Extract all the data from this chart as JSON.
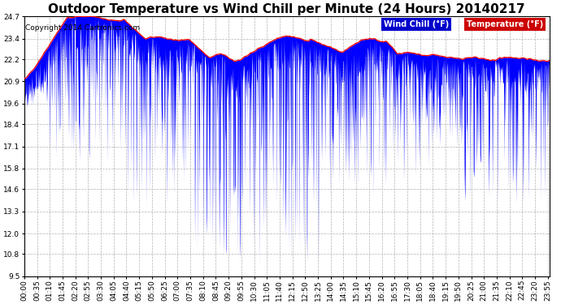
{
  "title": "Outdoor Temperature vs Wind Chill per Minute (24 Hours) 20140217",
  "copyright": "Copyright 2014 Cartronics.com",
  "legend_wind_chill": "Wind Chill (°F)",
  "legend_temperature": "Temperature (°F)",
  "ylim": [
    9.5,
    24.7
  ],
  "yticks": [
    9.5,
    10.8,
    12.0,
    13.3,
    14.6,
    15.8,
    17.1,
    18.4,
    19.6,
    20.9,
    22.2,
    23.4,
    24.7
  ],
  "bg_color": "#ffffff",
  "plot_bg_color": "#ffffff",
  "grid_color": "#aaaaaa",
  "temp_color": "#ff0000",
  "wind_chill_color": "#0000ff",
  "legend_wc_bg": "#0000cc",
  "legend_temp_bg": "#cc0000",
  "title_fontsize": 11,
  "axis_fontsize": 6.5,
  "copyright_fontsize": 6.5,
  "legend_fontsize": 7
}
